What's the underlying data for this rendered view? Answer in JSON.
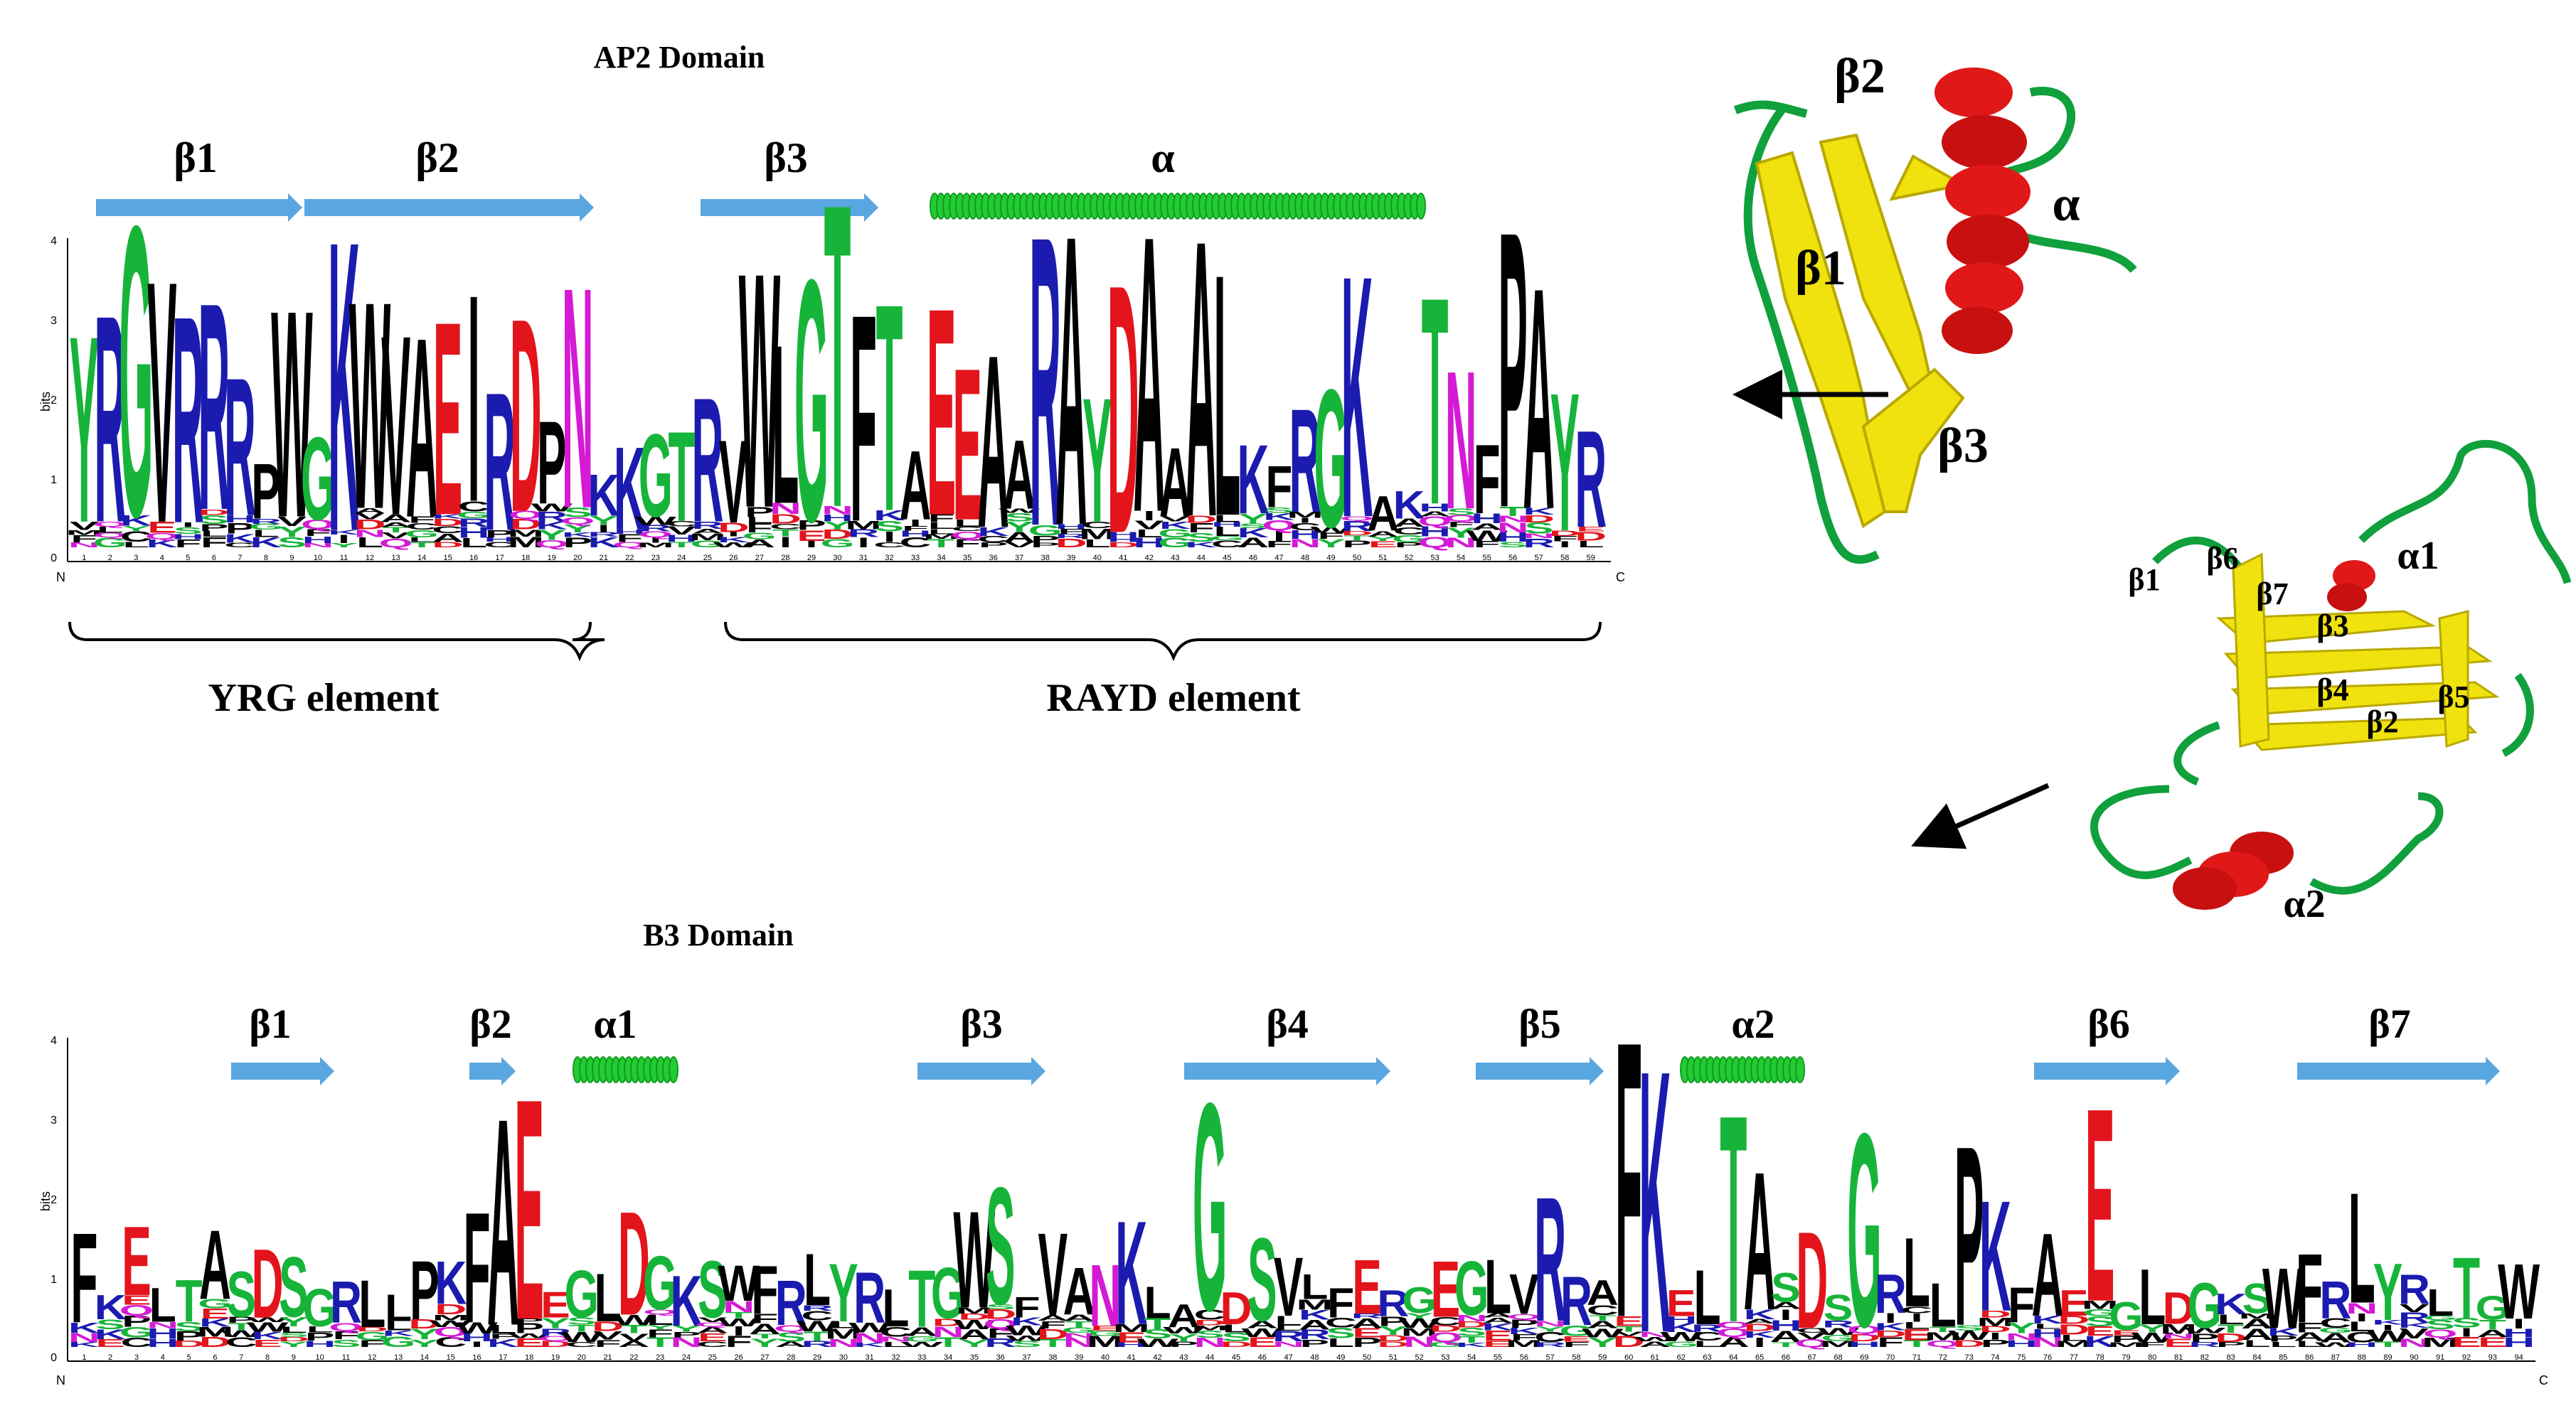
{
  "colors": {
    "strand_arrow": "#5aa6e0",
    "helix": "#22cc33",
    "hydrophobic": "#000000",
    "polar": "#17b43a",
    "basic": "#1b1bb0",
    "acidic": "#e3141c",
    "amide": "#d51ad5",
    "cartoon_sheet": "#f0e20e",
    "cartoon_helix": "#e01818",
    "cartoon_loop": "#10a03c"
  },
  "ap2": {
    "title": "AP2 Domain",
    "axis_label": "bits",
    "y_ticks": [
      "0",
      "1",
      "2",
      "3",
      "4"
    ],
    "n_label": "N",
    "c_label": "C",
    "positions": 59,
    "top_sequence": "YRGVRRRPWGKWVAEIRDPNKKGTRVWLGTFTAEEAARAYDAAALKFRGKAKTNFPA",
    "secondary_structure": [
      {
        "label": "β1",
        "type": "strand"
      },
      {
        "label": "β2",
        "type": "strand"
      },
      {
        "label": "β3",
        "type": "strand"
      },
      {
        "label": "α",
        "type": "helix"
      }
    ],
    "elements": [
      {
        "label": "YRG element"
      },
      {
        "label": "RAYD element"
      }
    ]
  },
  "b3": {
    "title": "B3 Domain",
    "axis_label": "bits",
    "y_ticks": [
      "0",
      "1",
      "2",
      "3",
      "4"
    ],
    "n_label": "N",
    "c_label": "C",
    "positions": 94,
    "top_sequence": "FKELTASDSGRLLPKFAEEGLDGKSWFRLYRLTGWSFVANKLAGDSVLFERGEGLVRRA",
    "secondary_structure": [
      {
        "label": "β1",
        "type": "strand"
      },
      {
        "label": "β2",
        "type": "strand"
      },
      {
        "label": "α1",
        "type": "helix"
      },
      {
        "label": "β3",
        "type": "strand"
      },
      {
        "label": "β4",
        "type": "strand"
      },
      {
        "label": "β5",
        "type": "strand"
      },
      {
        "label": "α2",
        "type": "helix"
      },
      {
        "label": "β6",
        "type": "strand"
      },
      {
        "label": "β7",
        "type": "strand"
      }
    ]
  },
  "ap2_structure": {
    "labels": [
      "β2",
      "α",
      "β1",
      "β3"
    ]
  },
  "b3_structure": {
    "labels": [
      "β1",
      "β6",
      "β7",
      "β3",
      "α1",
      "β4",
      "β5",
      "β2",
      "α2"
    ]
  },
  "icons": [
    "arrow-left-icon",
    "arrow-down-left-icon"
  ]
}
